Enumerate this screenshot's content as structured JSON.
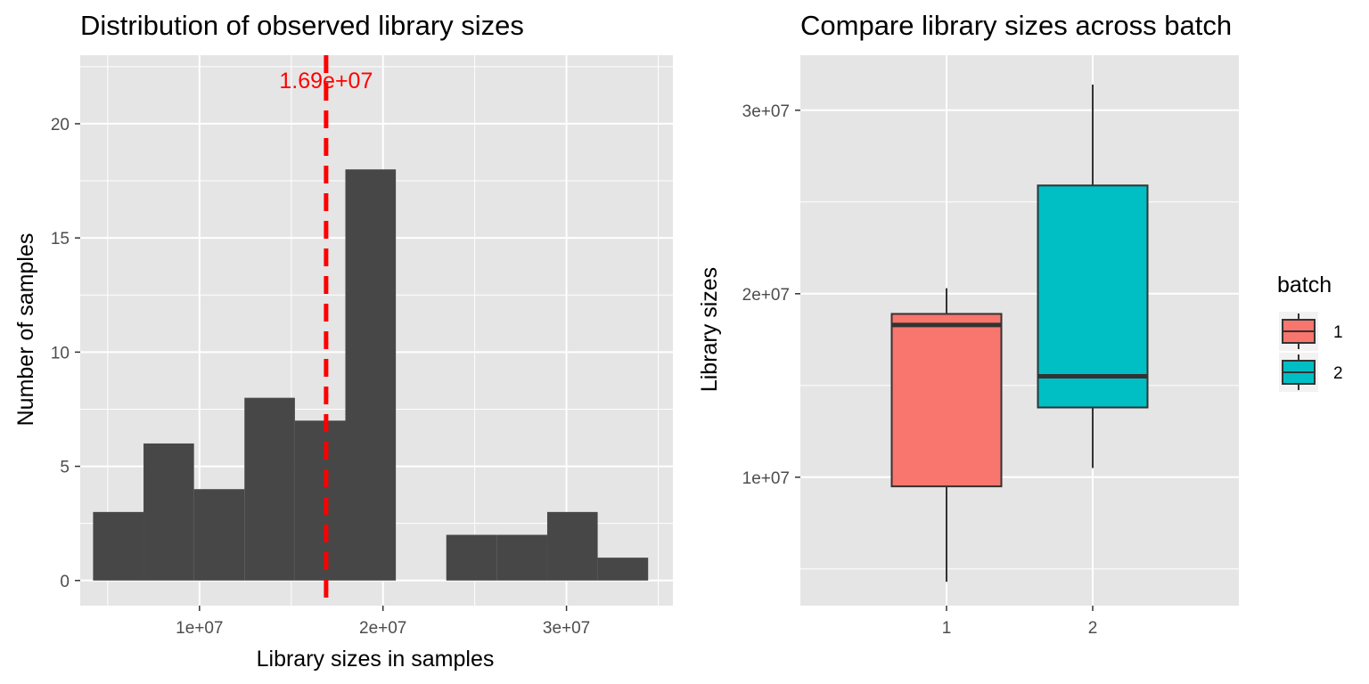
{
  "chart_data": [
    {
      "type": "bar",
      "subtype": "histogram",
      "title": "Distribution of observed library sizes",
      "xlabel": "Library sizes in samples",
      "ylabel": "Number of samples",
      "xlim": [
        3500000,
        35800000
      ],
      "ylim": [
        -1.1,
        23
      ],
      "x_ticks": [
        {
          "value": 10000000,
          "label": "1e+07"
        },
        {
          "value": 20000000,
          "label": "2e+07"
        },
        {
          "value": 30000000,
          "label": "3e+07"
        }
      ],
      "y_ticks": [
        {
          "value": 0,
          "label": "0"
        },
        {
          "value": 5,
          "label": "5"
        },
        {
          "value": 10,
          "label": "10"
        },
        {
          "value": 15,
          "label": "15"
        },
        {
          "value": 20,
          "label": "20"
        }
      ],
      "bins": [
        {
          "x0": 4200000,
          "x1": 6950000,
          "count": 3
        },
        {
          "x0": 6950000,
          "x1": 9700000,
          "count": 6
        },
        {
          "x0": 9700000,
          "x1": 12450000,
          "count": 4
        },
        {
          "x0": 12450000,
          "x1": 15200000,
          "count": 8
        },
        {
          "x0": 15200000,
          "x1": 17950000,
          "count": 7
        },
        {
          "x0": 17950000,
          "x1": 20700000,
          "count": 18
        },
        {
          "x0": 20700000,
          "x1": 23450000,
          "count": 0
        },
        {
          "x0": 23450000,
          "x1": 26200000,
          "count": 2
        },
        {
          "x0": 26200000,
          "x1": 28950000,
          "count": 2
        },
        {
          "x0": 28950000,
          "x1": 31700000,
          "count": 3
        },
        {
          "x0": 31700000,
          "x1": 34450000,
          "count": 1
        }
      ],
      "bar_color": "#474747",
      "reference_line": {
        "x": 16900000,
        "label": "1.69e+07",
        "color": "#ff0000",
        "style": "dashed"
      },
      "grid": true,
      "panel_background": "#e5e5e5"
    },
    {
      "type": "boxplot",
      "title": "Compare library sizes across batch",
      "xlabel": "",
      "ylabel": "Library sizes",
      "ylim": [
        3000000,
        33000000
      ],
      "categories": [
        "1",
        "2"
      ],
      "y_ticks": [
        {
          "value": 10000000,
          "label": "1e+07"
        },
        {
          "value": 20000000,
          "label": "2e+07"
        },
        {
          "value": 30000000,
          "label": "3e+07"
        }
      ],
      "boxes": [
        {
          "category": "1",
          "min": 4300000,
          "q1": 9500000,
          "median": 18300000,
          "q3": 18900000,
          "max": 20300000,
          "color": "#f8766d"
        },
        {
          "category": "2",
          "min": 10500000,
          "q1": 13800000,
          "median": 15500000,
          "q3": 25900000,
          "max": 31400000,
          "color": "#00bfc4"
        }
      ],
      "legend": {
        "title": "batch",
        "position": "right",
        "items": [
          {
            "label": "1",
            "color": "#f8766d"
          },
          {
            "label": "2",
            "color": "#00bfc4"
          }
        ]
      },
      "grid": true,
      "panel_background": "#e5e5e5"
    }
  ]
}
